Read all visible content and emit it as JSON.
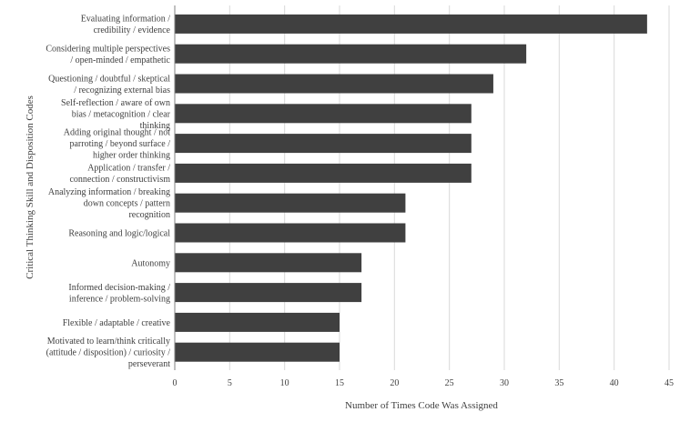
{
  "chart_data": {
    "type": "bar",
    "orientation": "horizontal",
    "categories": [
      "Evaluating information /\ncredibility / evidence",
      "Considering multiple perspectives\n/ open-minded / empathetic",
      "Questioning / doubtful / skeptical\n/ recognizing external bias",
      "Self-reflection / aware of own\nbias / metacognition / clear\nthinking",
      "Adding original thought / not\nparroting / beyond surface /\nhigher order thinking",
      "Application / transfer /\nconnection / constructivism",
      "Analyzing information / breaking\ndown concepts / pattern\nrecognition",
      "Reasoning and logic/logical",
      "Autonomy",
      "Informed decision-making /\ninference / problem-solving",
      "Flexible / adaptable / creative",
      "Motivated to learn/think critically\n(attitude / disposition) / curiosity /\nperseverant"
    ],
    "values": [
      43,
      32,
      29,
      27,
      27,
      27,
      21,
      21,
      17,
      17,
      15,
      15
    ],
    "xlabel": "Number of Times Code Was Assigned",
    "ylabel": "Critical Thinking Skill and Disposition Codes",
    "xlim": [
      0,
      45
    ],
    "xticks": [
      "0",
      "5",
      "10",
      "15",
      "20",
      "25",
      "30",
      "35",
      "40",
      "45"
    ],
    "grid": "vertical",
    "legend": "none",
    "bar_color": "#404040",
    "grid_color": "#d9d9d9"
  }
}
